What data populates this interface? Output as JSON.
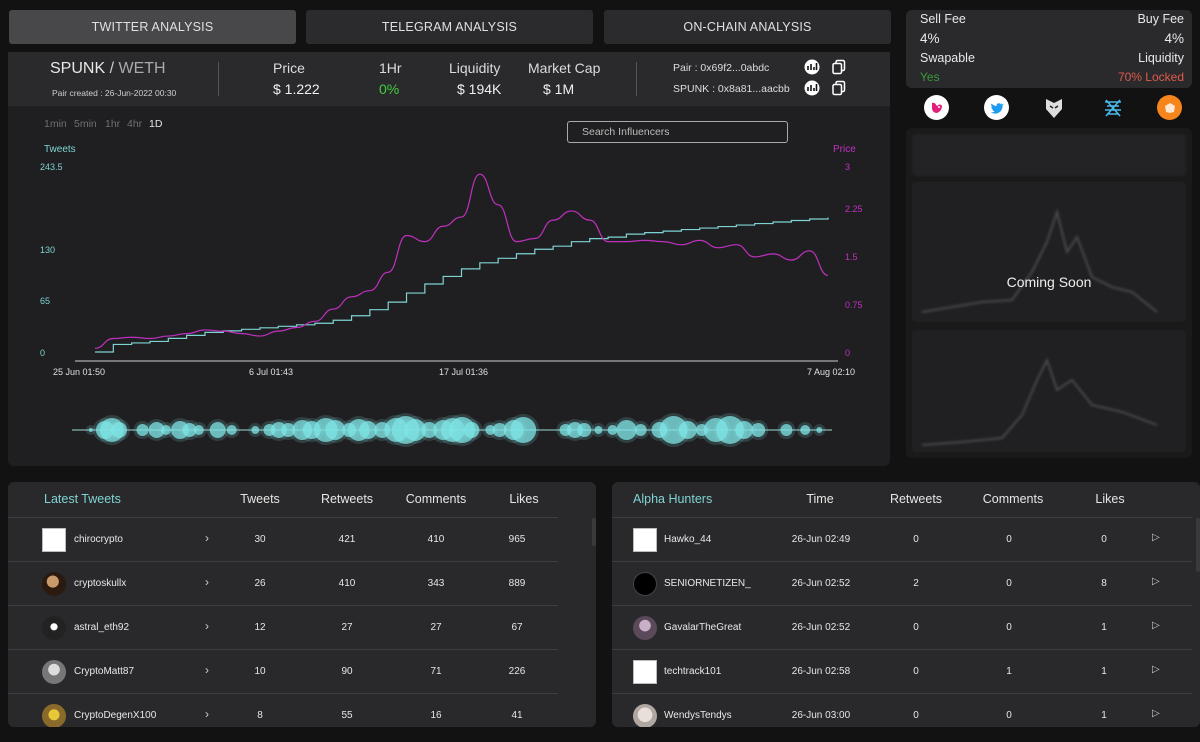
{
  "tabs": [
    {
      "label": "TWITTER ANALYSIS"
    },
    {
      "label": "TELEGRAM ANALYSIS"
    },
    {
      "label": "ON-CHAIN ANALYSIS"
    }
  ],
  "pair": {
    "base": "SPUNK",
    "sep": " / ",
    "quote": "WETH",
    "created": "Pair created : 26-Jun-2022 00:30"
  },
  "stats": {
    "price_label": "Price",
    "price_value": "$ 1.222",
    "change_label": "1Hr",
    "change_value": "0%",
    "liquidity_label": "Liquidity",
    "liquidity_value": "$ 194K",
    "mcap_label": "Market Cap",
    "mcap_value": "$ 1M"
  },
  "addresses": {
    "pair": "Pair : 0x69f2...0abdc",
    "token": "SPUNK : 0x8a81...aacbb"
  },
  "timeframes": [
    "1min",
    "5min",
    "1hr",
    "4hr",
    "1D"
  ],
  "selected_timeframe": "1D",
  "search": {
    "placeholder": "Search Influencers"
  },
  "colors": {
    "tweets": "#7fd3d3",
    "price": "#c030c0",
    "green": "#3fcf3f",
    "red": "#e05a4a"
  },
  "chart_data": {
    "type": "line",
    "y_left_label": "Tweets",
    "y_right_label": "Price",
    "y_left_ticks": [
      "243.5",
      "130",
      "65",
      "0"
    ],
    "y_right_ticks": [
      "3",
      "2.25",
      "1.5",
      "0.75",
      "0"
    ],
    "x_ticks": [
      "25 Jun 01:50",
      "6 Jul 01:43",
      "17 Jul 01:36",
      "7 Aug 02:10"
    ],
    "ylim_left": [
      0,
      243.5
    ],
    "ylim_right": [
      0,
      3
    ],
    "series": [
      {
        "name": "Tweets",
        "y": [
          0,
          10,
          12,
          14,
          18,
          22,
          26,
          28,
          30,
          32,
          34,
          36,
          38,
          42,
          48,
          56,
          66,
          78,
          90,
          100,
          110,
          118,
          124,
          130,
          136,
          140,
          146,
          150,
          152,
          156,
          158,
          160,
          162,
          164,
          166,
          168,
          170,
          172,
          174,
          176,
          178
        ]
      },
      {
        "name": "Price",
        "y": [
          0.06,
          0.22,
          0.24,
          0.22,
          0.26,
          0.3,
          0.36,
          0.34,
          0.3,
          0.26,
          0.34,
          0.4,
          0.5,
          0.7,
          0.9,
          1.0,
          1.3,
          1.9,
          1.8,
          2.05,
          2.2,
          2.9,
          2.4,
          1.8,
          1.85,
          2.15,
          2.3,
          2.15,
          1.8,
          1.8,
          1.82,
          1.8,
          1.75,
          1.82,
          1.7,
          1.75,
          1.55,
          1.6,
          1.5,
          1.65,
          1.25
        ]
      }
    ]
  },
  "bubbles": [
    {
      "x": 0.04,
      "r": 2
    },
    {
      "x": 0.07,
      "r": 9
    },
    {
      "x": 0.085,
      "r": 12
    },
    {
      "x": 0.1,
      "r": 8
    },
    {
      "x": 0.15,
      "r": 6
    },
    {
      "x": 0.18,
      "r": 8
    },
    {
      "x": 0.2,
      "r": 5
    },
    {
      "x": 0.23,
      "r": 9
    },
    {
      "x": 0.25,
      "r": 7
    },
    {
      "x": 0.27,
      "r": 5
    },
    {
      "x": 0.31,
      "r": 8
    },
    {
      "x": 0.34,
      "r": 5
    },
    {
      "x": 0.39,
      "r": 4
    },
    {
      "x": 0.42,
      "r": 6
    },
    {
      "x": 0.44,
      "r": 8
    },
    {
      "x": 0.46,
      "r": 7
    },
    {
      "x": 0.49,
      "r": 10
    },
    {
      "x": 0.51,
      "r": 9
    },
    {
      "x": 0.54,
      "r": 12
    },
    {
      "x": 0.56,
      "r": 10
    },
    {
      "x": 0.59,
      "r": 7
    },
    {
      "x": 0.61,
      "r": 11
    },
    {
      "x": 0.63,
      "r": 9
    },
    {
      "x": 0.66,
      "r": 8
    },
    {
      "x": 0.69,
      "r": 12
    },
    {
      "x": 0.71,
      "r": 14
    },
    {
      "x": 0.73,
      "r": 11
    },
    {
      "x": 0.76,
      "r": 8
    },
    {
      "x": 0.79,
      "r": 10
    },
    {
      "x": 0.81,
      "r": 12
    },
    {
      "x": 0.83,
      "r": 13
    },
    {
      "x": 0.85,
      "r": 8
    },
    {
      "x": 0.89,
      "r": 5
    },
    {
      "x": 0.91,
      "r": 7
    },
    {
      "x": 0.94,
      "r": 10
    },
    {
      "x": 0.96,
      "r": 13
    },
    {
      "x": 1.05,
      "r": 6
    },
    {
      "x": 1.07,
      "r": 8
    },
    {
      "x": 1.09,
      "r": 7
    },
    {
      "x": 1.12,
      "r": 4
    },
    {
      "x": 1.15,
      "r": 5
    },
    {
      "x": 1.18,
      "r": 10
    },
    {
      "x": 1.21,
      "r": 6
    },
    {
      "x": 1.25,
      "r": 8
    },
    {
      "x": 1.28,
      "r": 14
    },
    {
      "x": 1.31,
      "r": 9
    },
    {
      "x": 1.34,
      "r": 6
    },
    {
      "x": 1.37,
      "r": 12
    },
    {
      "x": 1.4,
      "r": 14
    },
    {
      "x": 1.43,
      "r": 9
    },
    {
      "x": 1.46,
      "r": 7
    },
    {
      "x": 1.52,
      "r": 6
    },
    {
      "x": 1.56,
      "r": 5
    },
    {
      "x": 1.59,
      "r": 3
    }
  ],
  "fees": {
    "sell_label": "Sell Fee",
    "sell_value": "4%",
    "buy_label": "Buy Fee",
    "buy_value": "4%",
    "swap_label": "Swapable",
    "swap_value": "Yes",
    "liq_label": "Liquidity",
    "liq_value": "70% Locked"
  },
  "socials": [
    "uniswap-icon",
    "twitter-icon",
    "dextools-icon",
    "dexscreener-icon",
    "metamask-icon"
  ],
  "coming_soon": "Coming Soon",
  "latest_tweets": {
    "title": "Latest Tweets",
    "columns": [
      "Tweets",
      "Retweets",
      "Comments",
      "Likes"
    ],
    "rows": [
      {
        "user": "chirocrypto",
        "tweets": "30",
        "retweets": "421",
        "comments": "410",
        "likes": "965"
      },
      {
        "user": "cryptoskullx",
        "tweets": "26",
        "retweets": "410",
        "comments": "343",
        "likes": "889"
      },
      {
        "user": "astral_eth92",
        "tweets": "12",
        "retweets": "27",
        "comments": "27",
        "likes": "67"
      },
      {
        "user": "CryptoMatt87",
        "tweets": "10",
        "retweets": "90",
        "comments": "71",
        "likes": "226"
      },
      {
        "user": "CryptoDegenX100",
        "tweets": "8",
        "retweets": "55",
        "comments": "16",
        "likes": "41"
      }
    ]
  },
  "alpha_hunters": {
    "title": "Alpha Hunters",
    "columns": [
      "Time",
      "Retweets",
      "Comments",
      "Likes"
    ],
    "rows": [
      {
        "user": "Hawko_44",
        "time": "26-Jun 02:49",
        "retweets": "0",
        "comments": "0",
        "likes": "0"
      },
      {
        "user": "SENIORNETIZEN_",
        "time": "26-Jun 02:52",
        "retweets": "2",
        "comments": "0",
        "likes": "8"
      },
      {
        "user": "GavalarTheGreat",
        "time": "26-Jun 02:52",
        "retweets": "0",
        "comments": "0",
        "likes": "1"
      },
      {
        "user": "techtrack101",
        "time": "26-Jun 02:58",
        "retweets": "0",
        "comments": "1",
        "likes": "1"
      },
      {
        "user": "WendysTendys",
        "time": "26-Jun 03:00",
        "retweets": "0",
        "comments": "0",
        "likes": "1"
      }
    ]
  }
}
